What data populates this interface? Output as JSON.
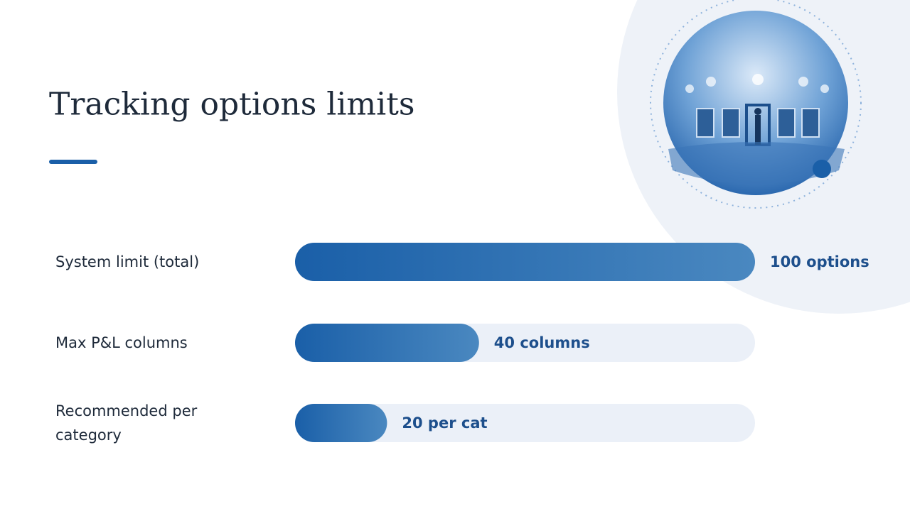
{
  "chart_data": {
    "type": "bar",
    "orientation": "horizontal",
    "title": "Tracking options limits",
    "categories": [
      "System limit (total)",
      "Max P&L columns",
      "Recommended per category"
    ],
    "values": [
      100,
      40,
      20
    ],
    "value_labels": [
      "100 options",
      "40 columns",
      "20 per cat"
    ],
    "color": "#1a5fa8",
    "xlim": [
      0,
      100
    ]
  }
}
